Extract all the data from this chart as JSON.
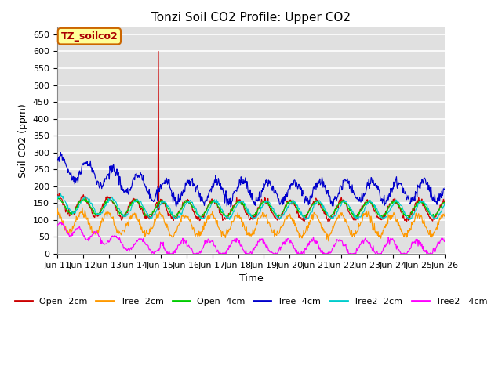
{
  "title": "Tonzi Soil CO2 Profile: Upper CO2",
  "ylabel": "Soil CO2 (ppm)",
  "xlabel": "Time",
  "ylim": [
    0,
    670
  ],
  "yticks": [
    0,
    50,
    100,
    150,
    200,
    250,
    300,
    350,
    400,
    450,
    500,
    550,
    600,
    650
  ],
  "xtick_labels": [
    "Jun 11",
    "Jun 12",
    "Jun 13",
    "Jun 14",
    "Jun 15",
    "Jun 16",
    "Jun 17",
    "Jun 18",
    "Jun 19",
    "Jun 20",
    "Jun 21",
    "Jun 22",
    "Jun 23",
    "Jun 24",
    "Jun 25",
    "Jun 26"
  ],
  "fig_bg_color": "#ffffff",
  "plot_bg_color": "#e0e0e0",
  "grid_color": "#ffffff",
  "series": [
    {
      "label": "Open -2cm",
      "color": "#cc0000"
    },
    {
      "label": "Tree -2cm",
      "color": "#ff9900"
    },
    {
      "label": "Open -4cm",
      "color": "#00cc00"
    },
    {
      "label": "Tree -4cm",
      "color": "#0000cc"
    },
    {
      "label": "Tree2 -2cm",
      "color": "#00cccc"
    },
    {
      "label": "Tree2 - 4cm",
      "color": "#ff00ff"
    }
  ],
  "legend_label": "TZ_soilco2",
  "legend_facecolor": "#ffff99",
  "legend_edgecolor": "#cc6600",
  "title_fontsize": 11,
  "axis_label_fontsize": 9,
  "tick_fontsize": 8
}
